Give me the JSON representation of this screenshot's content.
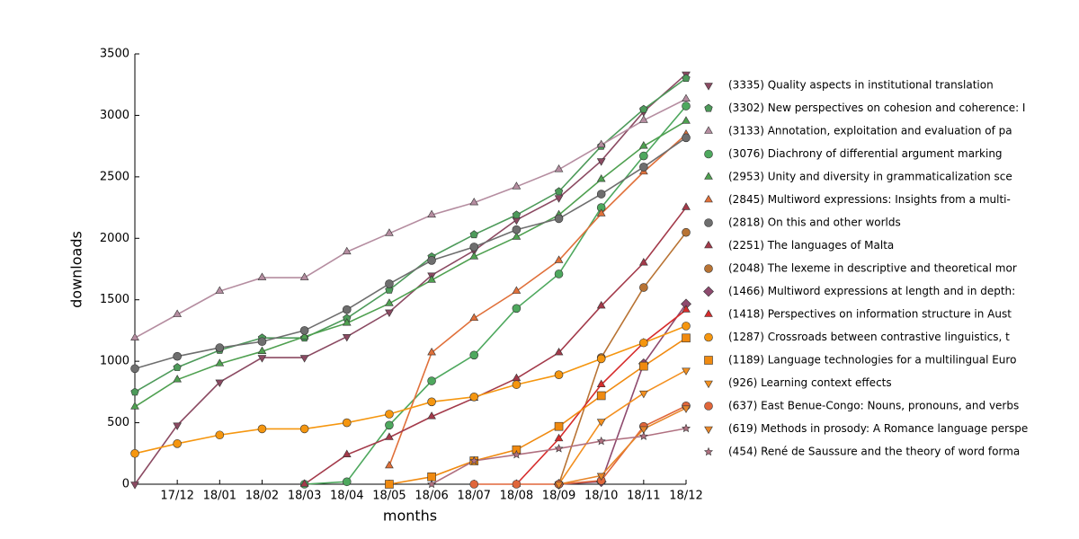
{
  "chart_data": {
    "type": "line",
    "xlabel": "months",
    "ylabel": "downloads",
    "categories": [
      null,
      "17/12",
      "18/01",
      "18/02",
      "18/03",
      "18/04",
      "18/05",
      "18/06",
      "18/07",
      "18/08",
      "18/09",
      "18/10",
      "18/11",
      "18/12"
    ],
    "ylim": [
      0,
      3500
    ],
    "yticks": [
      0,
      500,
      1000,
      1500,
      2000,
      2500,
      3000,
      3500
    ],
    "series": [
      {
        "name": "(3335) Quality aspects in institutional translation",
        "color": "#8b4a62",
        "marker": "v",
        "values": [
          0,
          480,
          830,
          1030,
          1030,
          1200,
          1400,
          1700,
          1900,
          2150,
          2330,
          2630,
          3030,
          3335
        ]
      },
      {
        "name": "(3302) New perspectives on cohesion and coherence: I",
        "color": "#4d9a5a",
        "marker": "p",
        "values": [
          750,
          950,
          1090,
          1190,
          1190,
          1350,
          1580,
          1850,
          2030,
          2190,
          2380,
          2750,
          3050,
          3302
        ]
      },
      {
        "name": "(3133) Annotation, exploitation and evaluation of pa",
        "color": "#b58da0",
        "marker": "^",
        "values": [
          1190,
          1380,
          1570,
          1680,
          1680,
          1890,
          2040,
          2190,
          2290,
          2420,
          2560,
          2760,
          2960,
          3133
        ]
      },
      {
        "name": "(3076) Diachrony of differential argument marking",
        "color": "#4ea85e",
        "marker": "o",
        "values": [
          null,
          null,
          null,
          null,
          0,
          20,
          480,
          840,
          1050,
          1430,
          1710,
          2250,
          2670,
          3076
        ]
      },
      {
        "name": "(2953) Unity and diversity in grammaticalization sce",
        "color": "#4fa050",
        "marker": "^",
        "values": [
          630,
          850,
          980,
          1080,
          1200,
          1310,
          1470,
          1660,
          1850,
          2010,
          2190,
          2480,
          2750,
          2953
        ]
      },
      {
        "name": "(2845) Multiword expressions: Insights from a multi-",
        "color": "#e0703a",
        "marker": "^",
        "values": [
          null,
          null,
          null,
          null,
          null,
          null,
          150,
          1070,
          1350,
          1570,
          1820,
          2200,
          2540,
          2845
        ]
      },
      {
        "name": "(2818) On this and other worlds",
        "color": "#6e6e6e",
        "marker": "o",
        "values": [
          940,
          1040,
          1110,
          1160,
          1250,
          1420,
          1630,
          1820,
          1930,
          2070,
          2160,
          2360,
          2580,
          2818
        ]
      },
      {
        "name": "(2251) The languages of Malta",
        "color": "#a33a4a",
        "marker": "^",
        "values": [
          null,
          null,
          null,
          null,
          0,
          240,
          380,
          550,
          700,
          860,
          1070,
          1450,
          1800,
          2251
        ]
      },
      {
        "name": "(2048) The lexeme in descriptive and theoretical mor",
        "color": "#b87333",
        "marker": "o",
        "values": [
          null,
          null,
          null,
          null,
          null,
          null,
          null,
          null,
          null,
          null,
          0,
          1030,
          1600,
          2048
        ]
      },
      {
        "name": "(1466) Multiword expressions at length and in depth:",
        "color": "#8e4a6e",
        "marker": "D",
        "values": [
          null,
          null,
          null,
          null,
          null,
          null,
          null,
          null,
          null,
          null,
          0,
          20,
          980,
          1466
        ]
      },
      {
        "name": "(1418) Perspectives on information structure in Aust",
        "color": "#d62c2c",
        "marker": "^",
        "values": [
          null,
          null,
          null,
          null,
          null,
          null,
          null,
          null,
          null,
          0,
          370,
          810,
          1150,
          1418
        ]
      },
      {
        "name": "(1287) Crossroads between contrastive linguistics, t",
        "color": "#f5960f",
        "marker": "o",
        "values": [
          250,
          330,
          400,
          450,
          450,
          500,
          570,
          670,
          710,
          810,
          890,
          1020,
          1150,
          1287
        ]
      },
      {
        "name": "(1189) Language technologies for a multilingual Euro",
        "color": "#f08a10",
        "marker": "s",
        "values": [
          null,
          null,
          null,
          null,
          null,
          null,
          0,
          60,
          190,
          280,
          470,
          720,
          960,
          1189
        ]
      },
      {
        "name": "(926) Learning context effects",
        "color": "#f39020",
        "marker": "v",
        "values": [
          null,
          null,
          null,
          null,
          null,
          null,
          null,
          null,
          null,
          null,
          0,
          510,
          740,
          926
        ]
      },
      {
        "name": "(637) East Benue-Congo: Nouns, pronouns, and verbs",
        "color": "#e0663a",
        "marker": "o",
        "values": [
          null,
          null,
          null,
          null,
          null,
          null,
          null,
          null,
          0,
          0,
          0,
          30,
          470,
          637
        ]
      },
      {
        "name": "(619) Methods in prosody: A Romance language perspe",
        "color": "#e7862a",
        "marker": "v",
        "values": [
          null,
          null,
          null,
          null,
          null,
          null,
          null,
          null,
          null,
          null,
          0,
          70,
          450,
          619
        ]
      },
      {
        "name": "(454) René de Saussure and the theory of word forma",
        "color": "#b07080",
        "marker": "*",
        "values": [
          null,
          null,
          null,
          null,
          null,
          null,
          null,
          0,
          190,
          240,
          290,
          350,
          390,
          454
        ]
      }
    ]
  }
}
